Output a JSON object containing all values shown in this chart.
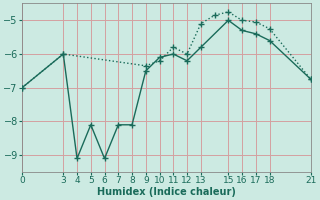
{
  "xlabel": "Humidex (Indice chaleur)",
  "background_color": "#cceae2",
  "grid_color": "#d4a0a0",
  "line_color": "#1a6b5a",
  "line1_x": [
    0,
    3,
    4,
    5,
    6,
    7,
    8,
    9,
    10,
    11,
    12,
    13,
    15,
    16,
    17,
    18,
    21
  ],
  "line1_y": [
    -7.0,
    -6.0,
    -9.1,
    -8.1,
    -9.1,
    -8.1,
    -8.1,
    -6.5,
    -6.1,
    -6.0,
    -6.2,
    -5.8,
    -5.0,
    -5.3,
    -5.4,
    -5.6,
    -6.75
  ],
  "line2_x": [
    0,
    3,
    9,
    10,
    11,
    12,
    13,
    14,
    15,
    16,
    17,
    18,
    21
  ],
  "line2_y": [
    -7.0,
    -6.0,
    -6.35,
    -6.2,
    -5.8,
    -6.0,
    -5.1,
    -4.85,
    -4.75,
    -5.0,
    -5.05,
    -5.25,
    -6.75
  ],
  "xlim": [
    0,
    21
  ],
  "ylim": [
    -9.5,
    -4.5
  ],
  "yticks": [
    -9,
    -8,
    -7,
    -6,
    -5
  ],
  "xticks": [
    0,
    3,
    4,
    5,
    6,
    7,
    8,
    9,
    10,
    11,
    12,
    13,
    15,
    16,
    17,
    18,
    21
  ]
}
